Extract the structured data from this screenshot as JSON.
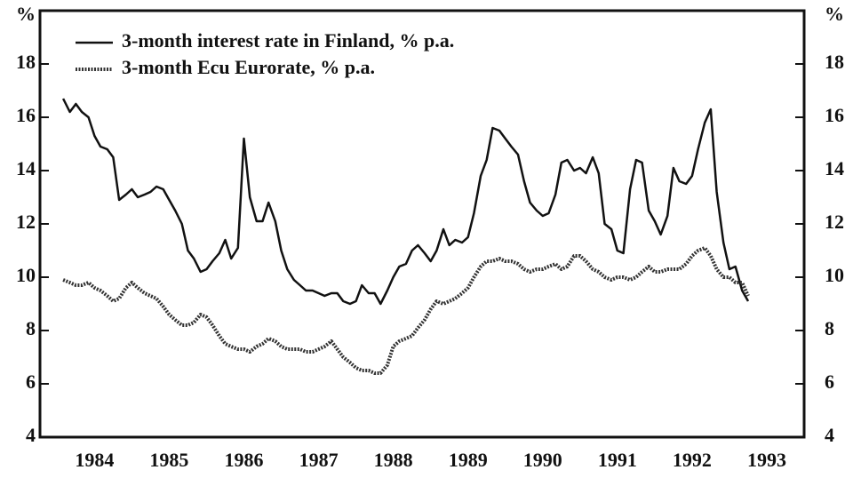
{
  "chart_data": {
    "type": "line",
    "ylabel": "%",
    "legend": "upper left",
    "x": [
      1984.08,
      1984.17,
      1984.25,
      1984.33,
      1984.42,
      1984.5,
      1984.58,
      1984.67,
      1984.75,
      1984.83,
      1984.92,
      1985,
      1985.08,
      1985.17,
      1985.25,
      1985.33,
      1985.42,
      1985.5,
      1985.58,
      1985.67,
      1985.75,
      1985.83,
      1985.92,
      1986,
      1986.08,
      1986.17,
      1986.25,
      1986.33,
      1986.42,
      1986.5,
      1986.58,
      1986.67,
      1986.75,
      1986.83,
      1986.92,
      1987,
      1987.08,
      1987.17,
      1987.25,
      1987.33,
      1987.42,
      1987.5,
      1987.58,
      1987.67,
      1987.75,
      1987.83,
      1987.92,
      1988,
      1988.08,
      1988.17,
      1988.25,
      1988.33,
      1988.42,
      1988.5,
      1988.58,
      1988.67,
      1988.75,
      1988.83,
      1988.92,
      1989,
      1989.08,
      1989.17,
      1989.25,
      1989.33,
      1989.42,
      1989.5,
      1989.58,
      1989.67,
      1989.75,
      1989.83,
      1989.92,
      1990,
      1990.08,
      1990.17,
      1990.25,
      1990.33,
      1990.42,
      1990.5,
      1990.58,
      1990.67,
      1990.75,
      1990.83,
      1990.92,
      1991,
      1991.08,
      1991.17,
      1991.25,
      1991.33,
      1991.42,
      1991.5,
      1991.58,
      1991.67,
      1991.75,
      1991.83,
      1991.92,
      1992,
      1992.08,
      1992.17,
      1992.25,
      1992.33,
      1992.42,
      1992.5,
      1992.58,
      1992.67,
      1992.75,
      1992.83,
      1992.92,
      1993,
      1993.08,
      1993.17,
      1993.25
    ],
    "series": [
      {
        "name": "3-month interest rate in Finland, % p.a.",
        "color": "#111111",
        "dash": "solid",
        "values": [
          16.7,
          16.2,
          16.5,
          16.2,
          16.0,
          15.3,
          14.9,
          14.8,
          14.5,
          12.9,
          13.1,
          13.3,
          13.0,
          13.1,
          13.2,
          13.4,
          13.3,
          12.9,
          12.5,
          12.0,
          11.0,
          10.7,
          10.2,
          10.3,
          10.6,
          10.9,
          11.4,
          10.7,
          11.1,
          15.2,
          13.0,
          12.1,
          12.1,
          12.8,
          12.1,
          11.0,
          10.3,
          9.9,
          9.7,
          9.5,
          9.5,
          9.4,
          9.3,
          9.4,
          9.4,
          9.1,
          9.0,
          9.1,
          9.7,
          9.4,
          9.4,
          9.0,
          9.5,
          10.0,
          10.4,
          10.5,
          11.0,
          11.2,
          10.9,
          10.6,
          11.0,
          11.8,
          11.2,
          11.4,
          11.3,
          11.5,
          12.4,
          13.8,
          14.4,
          15.6,
          15.5,
          15.2,
          14.9,
          14.6,
          13.6,
          12.8,
          12.5,
          12.3,
          12.4,
          13.1,
          14.3,
          14.4,
          14.0,
          14.1,
          13.9,
          14.5,
          13.9,
          12.0,
          11.8,
          11.0,
          10.9,
          13.3,
          14.4,
          14.3,
          12.5,
          12.1,
          11.6,
          12.3,
          14.1,
          13.6,
          13.5,
          13.8,
          14.8,
          15.8,
          16.3,
          13.2,
          11.3,
          10.3,
          10.4,
          9.5,
          9.1
        ]
      },
      {
        "name": "3-month Ecu Eurorate, % p.a.",
        "color": "#333333",
        "dash": "dotted",
        "values": [
          9.9,
          9.8,
          9.7,
          9.7,
          9.8,
          9.6,
          9.5,
          9.3,
          9.1,
          9.2,
          9.6,
          9.8,
          9.6,
          9.4,
          9.3,
          9.2,
          8.9,
          8.6,
          8.4,
          8.2,
          8.2,
          8.3,
          8.6,
          8.5,
          8.2,
          7.8,
          7.5,
          7.4,
          7.3,
          7.3,
          7.2,
          7.4,
          7.5,
          7.7,
          7.6,
          7.4,
          7.3,
          7.3,
          7.3,
          7.2,
          7.2,
          7.3,
          7.4,
          7.6,
          7.3,
          7.0,
          6.8,
          6.6,
          6.5,
          6.5,
          6.4,
          6.4,
          6.7,
          7.4,
          7.6,
          7.7,
          7.8,
          8.1,
          8.4,
          8.8,
          9.1,
          9.0,
          9.1,
          9.2,
          9.4,
          9.6,
          10.0,
          10.4,
          10.6,
          10.6,
          10.7,
          10.6,
          10.6,
          10.5,
          10.3,
          10.2,
          10.3,
          10.3,
          10.4,
          10.5,
          10.3,
          10.4,
          10.8,
          10.8,
          10.6,
          10.3,
          10.2,
          10.0,
          9.9,
          10.0,
          10.0,
          9.9,
          10.0,
          10.2,
          10.4,
          10.2,
          10.2,
          10.3,
          10.3,
          10.3,
          10.5,
          10.8,
          11.0,
          11.1,
          10.8,
          10.3,
          10.0,
          10.0,
          9.8,
          9.8,
          9.3
        ]
      }
    ],
    "xlim": [
      1983.77,
      1994.0
    ],
    "xticks": [
      {
        "value": 1984.5,
        "label": "1984"
      },
      {
        "value": 1985.5,
        "label": "1985"
      },
      {
        "value": 1986.5,
        "label": "1986"
      },
      {
        "value": 1987.5,
        "label": "1987"
      },
      {
        "value": 1988.5,
        "label": "1988"
      },
      {
        "value": 1989.5,
        "label": "1989"
      },
      {
        "value": 1990.5,
        "label": "1990"
      },
      {
        "value": 1991.5,
        "label": "1991"
      },
      {
        "value": 1992.5,
        "label": "1992"
      },
      {
        "value": 1993.5,
        "label": "1993"
      }
    ],
    "ylim": [
      4,
      20
    ],
    "yticks": [
      4,
      6,
      8,
      10,
      12,
      14,
      16,
      18
    ],
    "grid": false
  }
}
